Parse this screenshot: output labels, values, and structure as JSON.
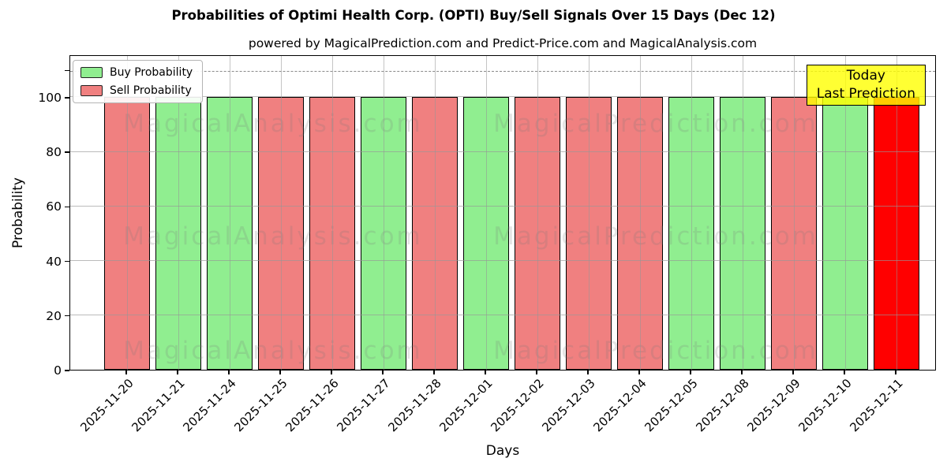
{
  "header": {
    "title": "Probabilities of Optimi Health Corp. (OPTI) Buy/Sell Signals Over 15 Days (Dec 12)",
    "subtitle": "powered by MagicalPrediction.com and Predict-Price.com and MagicalAnalysis.com"
  },
  "legend": {
    "items": [
      {
        "label": "Buy Probability",
        "color": "#90EE90"
      },
      {
        "label": "Sell Probability",
        "color": "#F08080"
      }
    ]
  },
  "today_annotation": {
    "line1": "Today",
    "line2": "Last Prediction",
    "bg_color": "#FFFF00",
    "border_color": "#000000"
  },
  "watermarks": {
    "left_text": "MagicalAnalysis.com",
    "right_text": "MagicalPrediction.com"
  },
  "chart_data": {
    "type": "bar",
    "title": "Probabilities of Optimi Health Corp. (OPTI) Buy/Sell Signals Over 15 Days (Dec 12)",
    "subtitle": "powered by MagicalPrediction.com and Predict-Price.com and MagicalAnalysis.com",
    "xlabel": "Days",
    "ylabel": "Probability",
    "ylim": [
      0,
      115.6
    ],
    "yticks": [
      0,
      20,
      40,
      60,
      80,
      100
    ],
    "unlabeled_tick": 110,
    "dashed_line_y": 110,
    "grid": true,
    "legend_position": "upper left",
    "bar_edge_color": "#000000",
    "categories": [
      "2025-11-20",
      "2025-11-21",
      "2025-11-24",
      "2025-11-25",
      "2025-11-26",
      "2025-11-27",
      "2025-11-28",
      "2025-12-01",
      "2025-12-02",
      "2025-12-03",
      "2025-12-04",
      "2025-12-05",
      "2025-12-08",
      "2025-12-09",
      "2025-12-10",
      "2025-12-11"
    ],
    "signals": [
      "sell",
      "buy",
      "buy",
      "sell",
      "sell",
      "buy",
      "sell",
      "buy",
      "sell",
      "sell",
      "sell",
      "buy",
      "buy",
      "sell",
      "buy",
      "sell"
    ],
    "series": [
      {
        "name": "Buy Probability",
        "color": "#90EE90",
        "values": [
          0,
          100,
          100,
          0,
          0,
          100,
          0,
          100,
          0,
          0,
          0,
          100,
          100,
          0,
          100,
          0
        ]
      },
      {
        "name": "Sell Probability",
        "color": "#F08080",
        "values": [
          100,
          0,
          0,
          100,
          100,
          0,
          100,
          0,
          100,
          100,
          100,
          0,
          0,
          100,
          0,
          100
        ]
      }
    ],
    "today": {
      "index": 15,
      "date": "2025-12-11",
      "signal": "sell",
      "color": "#FF0000"
    }
  }
}
